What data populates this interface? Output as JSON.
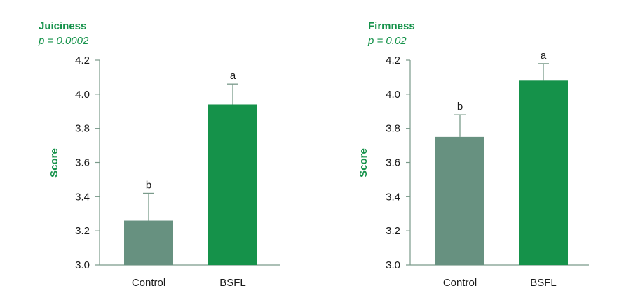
{
  "colors": {
    "accent": "#15924a",
    "control": "#679180",
    "bsfl": "#15924a",
    "axis": "#7a9a8a",
    "error": "#7a9a8a"
  },
  "chart_data": [
    {
      "type": "bar",
      "title": "Juiciness",
      "subtitle": "p = 0.0002",
      "xlabel": "",
      "ylabel": "Score",
      "ylim": [
        3.0,
        4.2
      ],
      "yticks": [
        "3.0",
        "3.2",
        "3.4",
        "3.6",
        "3.8",
        "4.0",
        "4.2"
      ],
      "categories": [
        "Control",
        "BSFL"
      ],
      "values": [
        3.26,
        3.94
      ],
      "errors": [
        0.16,
        0.12
      ],
      "letters": [
        "b",
        "a"
      ]
    },
    {
      "type": "bar",
      "title": "Firmness",
      "subtitle": "p = 0.02",
      "xlabel": "",
      "ylabel": "Score",
      "ylim": [
        3.0,
        4.2
      ],
      "yticks": [
        "3.0",
        "3.2",
        "3.4",
        "3.6",
        "3.8",
        "4.0",
        "4.2"
      ],
      "categories": [
        "Control",
        "BSFL"
      ],
      "values": [
        3.75,
        4.08
      ],
      "errors": [
        0.13,
        0.1
      ],
      "letters": [
        "b",
        "a"
      ]
    }
  ]
}
